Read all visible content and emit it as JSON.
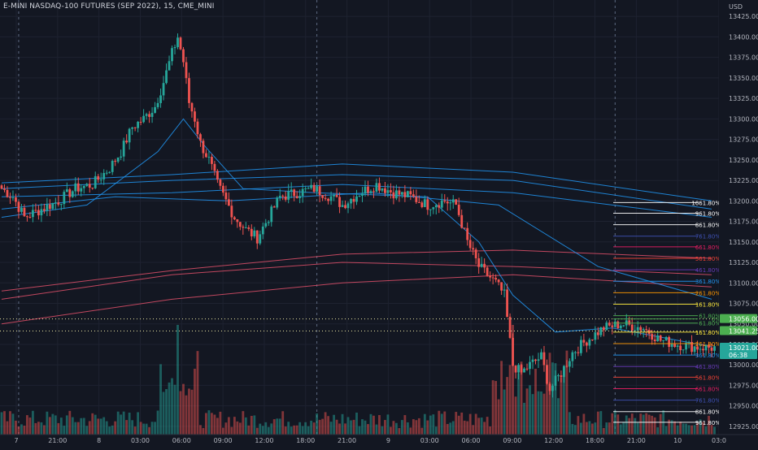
{
  "title": "E-MINI NASDAQ-100 FUTURES (SEP 2022), 15, CME_MINI",
  "currency": "USD",
  "colors": {
    "bg": "#131722",
    "grid": "#1e2230",
    "up": "#26a69a",
    "down": "#ef5350",
    "text": "#b2b5be",
    "ma_blue": "#2196f3",
    "ma_red": "#e0506a",
    "green_label": "#4caf50",
    "teal_label": "#26a69a"
  },
  "chart_data": {
    "type": "candlestick",
    "y_axis": {
      "ticks": [
        13425.0,
        13400.0,
        13375.0,
        13350.0,
        13325.0,
        13300.0,
        13275.0,
        13250.0,
        13225.0,
        13200.0,
        13175.0,
        13150.0,
        13125.0,
        13100.0,
        13075.0,
        13050.0,
        13025.0,
        13000.0,
        12975.0,
        12950.0,
        12925.0
      ],
      "tick_labels": [
        "13425.00",
        "13400.00",
        "13375.00",
        "13350.00",
        "13325.00",
        "13300.00",
        "13275.00",
        "13250.00",
        "13225.00",
        "13200.00",
        "13175.00",
        "13150.00",
        "13125.00",
        "13100.00",
        "13075.00",
        "13050.00",
        "13025.00",
        "13000.00",
        "12975.00",
        "12950.00",
        "12925.00"
      ],
      "range": [
        12915,
        13445
      ]
    },
    "x_axis": {
      "tick_labels": [
        "7",
        "21:00",
        "8",
        "03:00",
        "06:00",
        "09:00",
        "12:00",
        "18:00",
        "21:00",
        "9",
        "03:00",
        "06:00",
        "09:00",
        "12:00",
        "18:00",
        "21:00",
        "10",
        "03:0"
      ]
    },
    "price_labels": [
      {
        "value": 13056.0,
        "text": "13056.00",
        "color": "#4caf50"
      },
      {
        "value": 13041.25,
        "text": "13041.25",
        "color": "#4caf50"
      },
      {
        "value": 13021.0,
        "text": "13021.00",
        "sub": "06:38",
        "color": "#26a69a"
      }
    ],
    "fib_upper": [
      {
        "label": "1061.80%",
        "value": 13198,
        "color": "#ffffff"
      },
      {
        "label": "961.80%",
        "value": 13185,
        "color": "#ffffff"
      },
      {
        "label": "861.80%",
        "value": 13171,
        "color": "#ffffff"
      },
      {
        "label": "761.80%",
        "value": 13157,
        "color": "#3f51b5"
      },
      {
        "label": "661.80%",
        "value": 13144,
        "color": "#e91e63"
      },
      {
        "label": "561.80%",
        "value": 13130,
        "color": "#f44336"
      },
      {
        "label": "461.80%",
        "value": 13116,
        "color": "#673ab7"
      },
      {
        "label": "361.80%",
        "value": 13102,
        "color": "#2196f3"
      },
      {
        "label": "261.80%",
        "value": 13088,
        "color": "#ff9800"
      },
      {
        "label": "161.80%",
        "value": 13074,
        "color": "#ffeb3b"
      },
      {
        "label": "61.80%",
        "value": 13060,
        "color": "#4caf50"
      }
    ],
    "fib_lower": [
      {
        "label": "0%",
        "value": 13056,
        "color": "#4caf50"
      },
      {
        "label": "61.80%",
        "value": 13051,
        "color": "#4caf50"
      },
      {
        "label": "161.80%",
        "value": 13040,
        "color": "#ffeb3b"
      },
      {
        "label": "261.80%",
        "value": 13026,
        "color": "#ff9800"
      },
      {
        "label": "361.80%",
        "value": 13012,
        "color": "#2196f3"
      },
      {
        "label": "461.80%",
        "value": 12998,
        "color": "#673ab7"
      },
      {
        "label": "561.80%",
        "value": 12985,
        "color": "#f44336"
      },
      {
        "label": "661.80%",
        "value": 12971,
        "color": "#e91e63"
      },
      {
        "label": "761.80%",
        "value": 12957,
        "color": "#3f51b5"
      },
      {
        "label": "861.80%",
        "value": 12943,
        "color": "#ffffff"
      },
      {
        "label": "961.80%",
        "value": 12930,
        "color": "#ffffff"
      }
    ],
    "dotted_levels": [
      13056.0,
      13041.25
    ],
    "session_separators_index": [
      6,
      111,
      216,
      317
    ],
    "close_path": [
      [
        0,
        13215
      ],
      [
        4,
        13205
      ],
      [
        8,
        13180
      ],
      [
        14,
        13190
      ],
      [
        20,
        13200
      ],
      [
        26,
        13215
      ],
      [
        32,
        13220
      ],
      [
        38,
        13240
      ],
      [
        42,
        13260
      ],
      [
        46,
        13290
      ],
      [
        50,
        13300
      ],
      [
        54,
        13315
      ],
      [
        57,
        13345
      ],
      [
        60,
        13380
      ],
      [
        62,
        13400
      ],
      [
        64,
        13370
      ],
      [
        66,
        13320
      ],
      [
        68,
        13300
      ],
      [
        70,
        13270
      ],
      [
        73,
        13250
      ],
      [
        76,
        13220
      ],
      [
        79,
        13200
      ],
      [
        82,
        13180
      ],
      [
        86,
        13165
      ],
      [
        90,
        13155
      ],
      [
        94,
        13180
      ],
      [
        98,
        13205
      ],
      [
        104,
        13210
      ],
      [
        110,
        13215
      ],
      [
        116,
        13205
      ],
      [
        120,
        13195
      ],
      [
        126,
        13210
      ],
      [
        132,
        13220
      ],
      [
        138,
        13210
      ],
      [
        144,
        13205
      ],
      [
        150,
        13195
      ],
      [
        156,
        13200
      ],
      [
        160,
        13195
      ],
      [
        164,
        13150
      ],
      [
        168,
        13120
      ],
      [
        171,
        13110
      ],
      [
        174,
        13100
      ],
      [
        177,
        13085
      ],
      [
        180,
        13000
      ],
      [
        183,
        12990
      ],
      [
        186,
        13000
      ],
      [
        190,
        13010
      ],
      [
        193,
        12970
      ],
      [
        197,
        12990
      ],
      [
        201,
        13015
      ],
      [
        206,
        13030
      ],
      [
        212,
        13045
      ],
      [
        218,
        13050
      ],
      [
        226,
        13045
      ],
      [
        232,
        13030
      ],
      [
        238,
        13025
      ],
      [
        244,
        13022
      ],
      [
        250,
        13021
      ]
    ],
    "ma_blue": [
      [
        [
          0,
          13205
        ],
        [
          60,
          13210
        ],
        [
          120,
          13220
        ],
        [
          180,
          13210
        ],
        [
          250,
          13180
        ]
      ],
      [
        [
          0,
          13215
        ],
        [
          60,
          13225
        ],
        [
          120,
          13232
        ],
        [
          180,
          13225
        ],
        [
          250,
          13190
        ]
      ],
      [
        [
          0,
          13222
        ],
        [
          60,
          13232
        ],
        [
          120,
          13245
        ],
        [
          180,
          13235
        ],
        [
          250,
          13200
        ]
      ],
      [
        [
          0,
          13180
        ],
        [
          30,
          13195
        ],
        [
          55,
          13260
        ],
        [
          64,
          13300
        ],
        [
          72,
          13265
        ],
        [
          85,
          13215
        ],
        [
          110,
          13210
        ],
        [
          150,
          13205
        ],
        [
          168,
          13150
        ],
        [
          180,
          13085
        ],
        [
          195,
          13040
        ],
        [
          215,
          13045
        ],
        [
          250,
          13022
        ]
      ],
      [
        [
          0,
          13190
        ],
        [
          40,
          13205
        ],
        [
          80,
          13200
        ],
        [
          130,
          13210
        ],
        [
          175,
          13195
        ],
        [
          210,
          13120
        ],
        [
          250,
          13080
        ]
      ]
    ],
    "ma_red": [
      [
        [
          0,
          13090
        ],
        [
          60,
          13115
        ],
        [
          120,
          13135
        ],
        [
          180,
          13140
        ],
        [
          250,
          13130
        ]
      ],
      [
        [
          0,
          13080
        ],
        [
          60,
          13110
        ],
        [
          120,
          13125
        ],
        [
          180,
          13120
        ],
        [
          250,
          13110
        ]
      ],
      [
        [
          0,
          13050
        ],
        [
          60,
          13080
        ],
        [
          120,
          13100
        ],
        [
          180,
          13110
        ],
        [
          250,
          13095
        ]
      ]
    ]
  }
}
